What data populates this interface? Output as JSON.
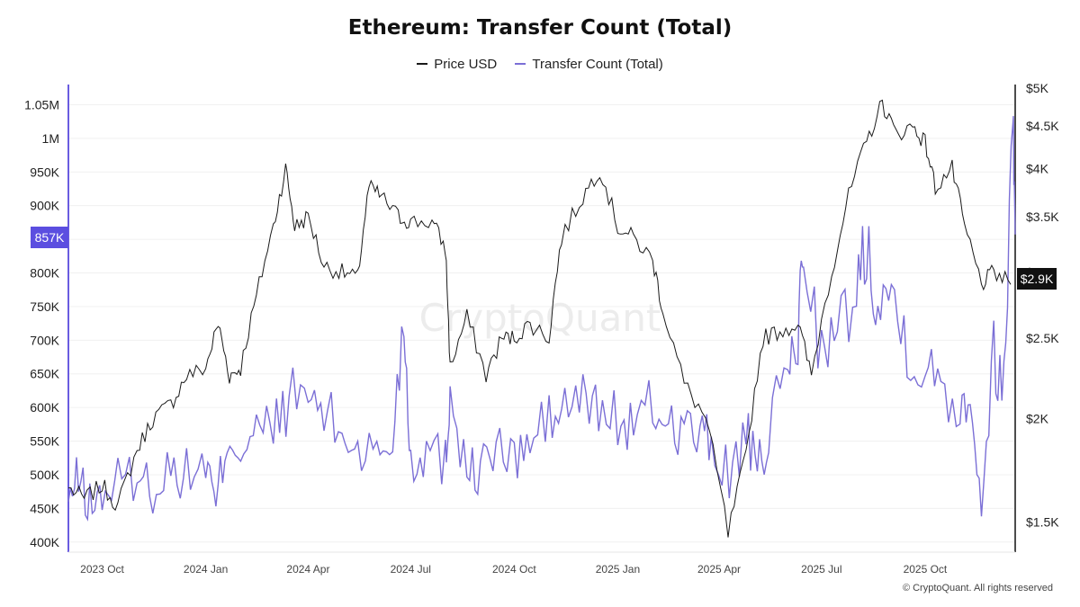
{
  "title": "Ethereum: Transfer Count (Total)",
  "legend": [
    {
      "label": "Price USD",
      "color": "#1a1a1a"
    },
    {
      "label": "Transfer Count (Total)",
      "color": "#7b6fd6"
    }
  ],
  "watermark": "CryptoQuant",
  "footer": "© CryptoQuant. All rights reserved",
  "colors": {
    "price": "#1a1a1a",
    "transfers": "#7b6fd6",
    "badge_left": "#5b4ee0",
    "badge_right": "#111111"
  },
  "chart_data": {
    "type": "line",
    "title": "Ethereum: Transfer Count (Total)",
    "x_ticks": [
      "2023 Oct",
      "2024 Jan",
      "2024 Apr",
      "2024 Jul",
      "2024 Oct",
      "2025 Jan",
      "2025 Apr",
      "2025 Jul",
      "2025 Oct"
    ],
    "left_axis": {
      "ticks": [
        "400K",
        "450K",
        "500K",
        "550K",
        "600K",
        "650K",
        "700K",
        "750K",
        "800K",
        "850K",
        "900K",
        "950K",
        "1M",
        "1.05M"
      ],
      "range": [
        385000,
        1080000
      ]
    },
    "right_axis": {
      "ticks": [
        "$1.5K",
        "$2K",
        "$2.5K",
        "$3K",
        "$3.5K",
        "$4K",
        "$4.5K",
        "$5K"
      ],
      "range": [
        1380,
        5050
      ],
      "scale": "log"
    },
    "last_value_badges": {
      "left": "857K",
      "right": "$2.9K"
    },
    "series": [
      {
        "name": "Price USD",
        "axis": "right",
        "points": [
          [
            "2023-09-01",
            1650
          ],
          [
            "2023-09-15",
            1600
          ],
          [
            "2023-10-01",
            1660
          ],
          [
            "2023-10-15",
            1570
          ],
          [
            "2023-11-01",
            1830
          ],
          [
            "2023-11-15",
            2000
          ],
          [
            "2023-12-01",
            2080
          ],
          [
            "2023-12-15",
            2250
          ],
          [
            "2024-01-01",
            2300
          ],
          [
            "2024-01-12",
            2600
          ],
          [
            "2024-01-22",
            2250
          ],
          [
            "2024-02-01",
            2300
          ],
          [
            "2024-02-15",
            2800
          ],
          [
            "2024-03-01",
            3400
          ],
          [
            "2024-03-12",
            4000
          ],
          [
            "2024-03-20",
            3400
          ],
          [
            "2024-04-01",
            3500
          ],
          [
            "2024-04-15",
            3050
          ],
          [
            "2024-05-01",
            3000
          ],
          [
            "2024-05-15",
            2950
          ],
          [
            "2024-05-25",
            3800
          ],
          [
            "2024-06-05",
            3700
          ],
          [
            "2024-06-20",
            3500
          ],
          [
            "2024-07-01",
            3450
          ],
          [
            "2024-07-20",
            3450
          ],
          [
            "2024-08-01",
            3200
          ],
          [
            "2024-08-05",
            2300
          ],
          [
            "2024-08-20",
            2650
          ],
          [
            "2024-09-06",
            2250
          ],
          [
            "2024-09-20",
            2500
          ],
          [
            "2024-10-01",
            2500
          ],
          [
            "2024-10-15",
            2600
          ],
          [
            "2024-11-01",
            2500
          ],
          [
            "2024-11-12",
            3300
          ],
          [
            "2024-12-01",
            3700
          ],
          [
            "2024-12-16",
            4000
          ],
          [
            "2025-01-01",
            3400
          ],
          [
            "2025-01-15",
            3300
          ],
          [
            "2025-02-01",
            3100
          ],
          [
            "2025-02-10",
            2700
          ],
          [
            "2025-03-01",
            2200
          ],
          [
            "2025-03-20",
            2000
          ],
          [
            "2025-04-09",
            1450
          ],
          [
            "2025-04-25",
            1800
          ],
          [
            "2025-05-10",
            2500
          ],
          [
            "2025-05-25",
            2550
          ],
          [
            "2025-06-10",
            2600
          ],
          [
            "2025-06-22",
            2250
          ],
          [
            "2025-07-10",
            3000
          ],
          [
            "2025-07-25",
            3700
          ],
          [
            "2025-08-10",
            4300
          ],
          [
            "2025-08-24",
            4800
          ],
          [
            "2025-09-05",
            4400
          ],
          [
            "2025-09-20",
            4500
          ],
          [
            "2025-10-01",
            4300
          ],
          [
            "2025-10-10",
            3800
          ],
          [
            "2025-10-25",
            4000
          ],
          [
            "2025-11-05",
            3400
          ],
          [
            "2025-11-20",
            2900
          ],
          [
            "2025-12-01",
            3000
          ],
          [
            "2025-12-16",
            2900
          ]
        ]
      },
      {
        "name": "Transfer Count (Total)",
        "axis": "left",
        "points": [
          [
            "2023-09-01",
            460000
          ],
          [
            "2023-09-10",
            495000
          ],
          [
            "2023-09-20",
            455000
          ],
          [
            "2023-10-01",
            470000
          ],
          [
            "2023-10-15",
            490000
          ],
          [
            "2023-11-01",
            500000
          ],
          [
            "2023-11-15",
            480000
          ],
          [
            "2023-12-01",
            510000
          ],
          [
            "2023-12-15",
            500000
          ],
          [
            "2024-01-01",
            520000
          ],
          [
            "2024-01-10",
            450000
          ],
          [
            "2024-01-20",
            560000
          ],
          [
            "2024-02-01",
            540000
          ],
          [
            "2024-02-15",
            560000
          ],
          [
            "2024-03-01",
            570000
          ],
          [
            "2024-03-15",
            610000
          ],
          [
            "2024-04-01",
            620000
          ],
          [
            "2024-04-15",
            590000
          ],
          [
            "2024-05-01",
            560000
          ],
          [
            "2024-05-15",
            540000
          ],
          [
            "2024-06-01",
            530000
          ],
          [
            "2024-06-15",
            550000
          ],
          [
            "2024-06-25",
            740000
          ],
          [
            "2024-07-01",
            520000
          ],
          [
            "2024-07-15",
            540000
          ],
          [
            "2024-08-01",
            520000
          ],
          [
            "2024-08-05",
            630000
          ],
          [
            "2024-08-20",
            500000
          ],
          [
            "2024-09-01",
            510000
          ],
          [
            "2024-09-15",
            540000
          ],
          [
            "2024-10-01",
            520000
          ],
          [
            "2024-10-15",
            550000
          ],
          [
            "2024-11-01",
            580000
          ],
          [
            "2024-11-15",
            600000
          ],
          [
            "2024-12-01",
            610000
          ],
          [
            "2024-12-15",
            600000
          ],
          [
            "2025-01-01",
            580000
          ],
          [
            "2025-01-15",
            570000
          ],
          [
            "2025-02-01",
            600000
          ],
          [
            "2025-02-15",
            580000
          ],
          [
            "2025-03-01",
            570000
          ],
          [
            "2025-03-15",
            560000
          ],
          [
            "2025-03-25",
            540000
          ],
          [
            "2025-04-10",
            500000
          ],
          [
            "2025-04-25",
            560000
          ],
          [
            "2025-05-05",
            500000
          ],
          [
            "2025-05-15",
            560000
          ],
          [
            "2025-06-01",
            660000
          ],
          [
            "2025-06-10",
            700000
          ],
          [
            "2025-06-15",
            850000
          ],
          [
            "2025-07-01",
            680000
          ],
          [
            "2025-07-15",
            700000
          ],
          [
            "2025-08-01",
            780000
          ],
          [
            "2025-08-10",
            845000
          ],
          [
            "2025-08-20",
            770000
          ],
          [
            "2025-09-01",
            770000
          ],
          [
            "2025-09-15",
            700000
          ],
          [
            "2025-10-01",
            650000
          ],
          [
            "2025-10-15",
            640000
          ],
          [
            "2025-11-01",
            600000
          ],
          [
            "2025-11-10",
            630000
          ],
          [
            "2025-11-20",
            460000
          ],
          [
            "2025-12-01",
            680000
          ],
          [
            "2025-12-10",
            630000
          ],
          [
            "2025-12-18",
            1050000
          ],
          [
            "2025-12-20",
            857000
          ]
        ]
      }
    ],
    "grid": true,
    "legend_position": "top-center"
  }
}
